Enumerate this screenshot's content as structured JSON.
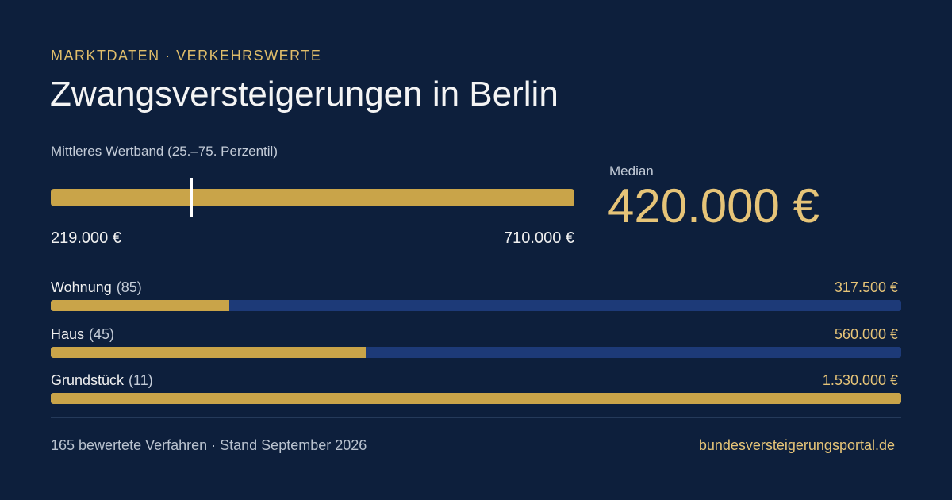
{
  "header": {
    "kicker": "MARKTDATEN  · VERKEHRSWERTE",
    "title": "Zwangsversteigerungen  in Berlin"
  },
  "band": {
    "label": "Mittleres Wertband (25.–75. Perzentil)",
    "min_label": "219.000 €",
    "max_label": "710.000 €",
    "min_value": 219000,
    "max_value": 710000,
    "median_value": 420000,
    "color": "#c9a449"
  },
  "median": {
    "label": "Median",
    "value": "420.000 €"
  },
  "categories": [
    {
      "name": "Wohnung",
      "count": "(85)",
      "value": "317.500 €",
      "fill_fraction": 0.21
    },
    {
      "name": "Haus",
      "count": "(45)",
      "value": "560.000 €",
      "fill_fraction": 0.37
    },
    {
      "name": "Grundstück",
      "count": "(11)",
      "value": "1.530.000 €",
      "fill_fraction": 1.0
    }
  ],
  "footer": {
    "left": "165 bewertete Verfahren  · Stand September 2026",
    "right": "bundesversteigerungsportal.de"
  },
  "colors": {
    "background": "#0d1f3c",
    "gold": "#c9a449",
    "gold_text": "#e6c478",
    "track_blue": "#1d3a78"
  }
}
